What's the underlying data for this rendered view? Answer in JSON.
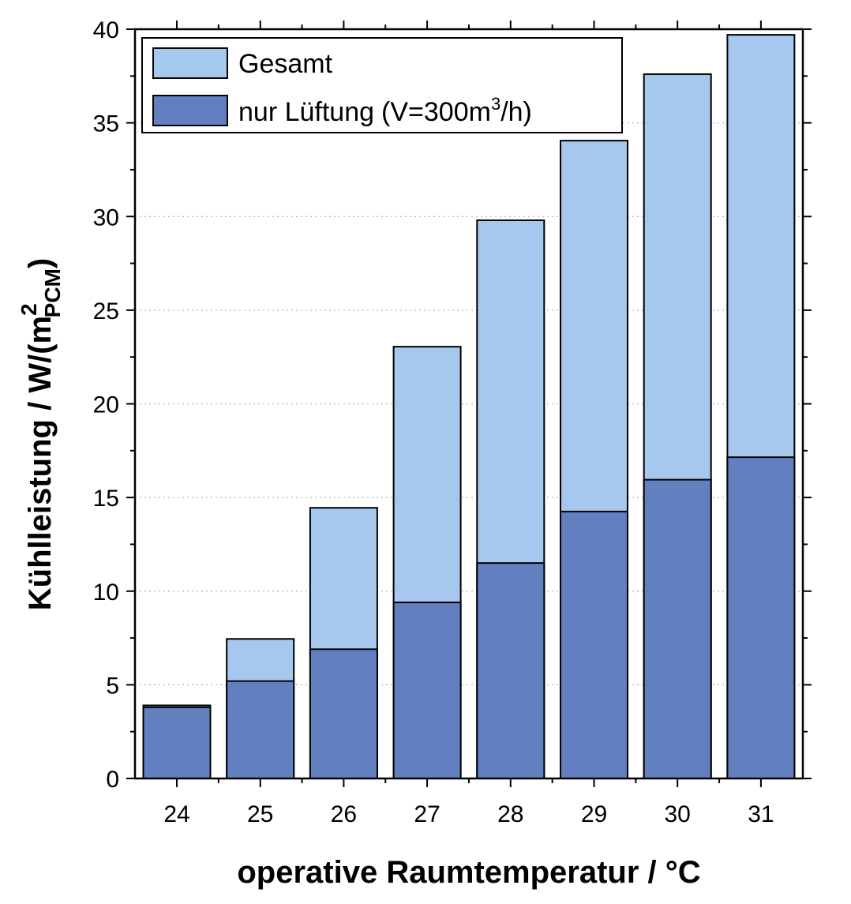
{
  "chart_data": {
    "type": "bar",
    "stacked": false,
    "overlapped": true,
    "categories": [
      "24",
      "25",
      "26",
      "27",
      "28",
      "29",
      "30",
      "31"
    ],
    "series": [
      {
        "name": "Gesamt",
        "color": "#a7c8ee",
        "values": [
          3.9,
          7.45,
          14.45,
          23.05,
          29.8,
          34.05,
          37.6,
          39.7
        ]
      },
      {
        "name": "nur Lüftung",
        "name_suffix_base": "(V=300m",
        "name_suffix_sup": "3",
        "name_suffix_end": "/h)",
        "color": "#6280c0",
        "values": [
          3.8,
          5.2,
          6.9,
          9.4,
          11.5,
          14.25,
          15.95,
          17.15
        ]
      }
    ],
    "xlabel": "operative Raumtemperatur / °C",
    "ylabel_main": "Kühlleistung / W/(m",
    "ylabel_sup": "2",
    "ylabel_sub": "PCM",
    "ylabel_end": ")",
    "ylim": [
      0,
      40
    ],
    "yticks": [
      "0",
      "5",
      "10",
      "15",
      "20",
      "25",
      "30",
      "35",
      "40"
    ],
    "grid": "horizontal-dotted",
    "legend_position": "top-left"
  }
}
